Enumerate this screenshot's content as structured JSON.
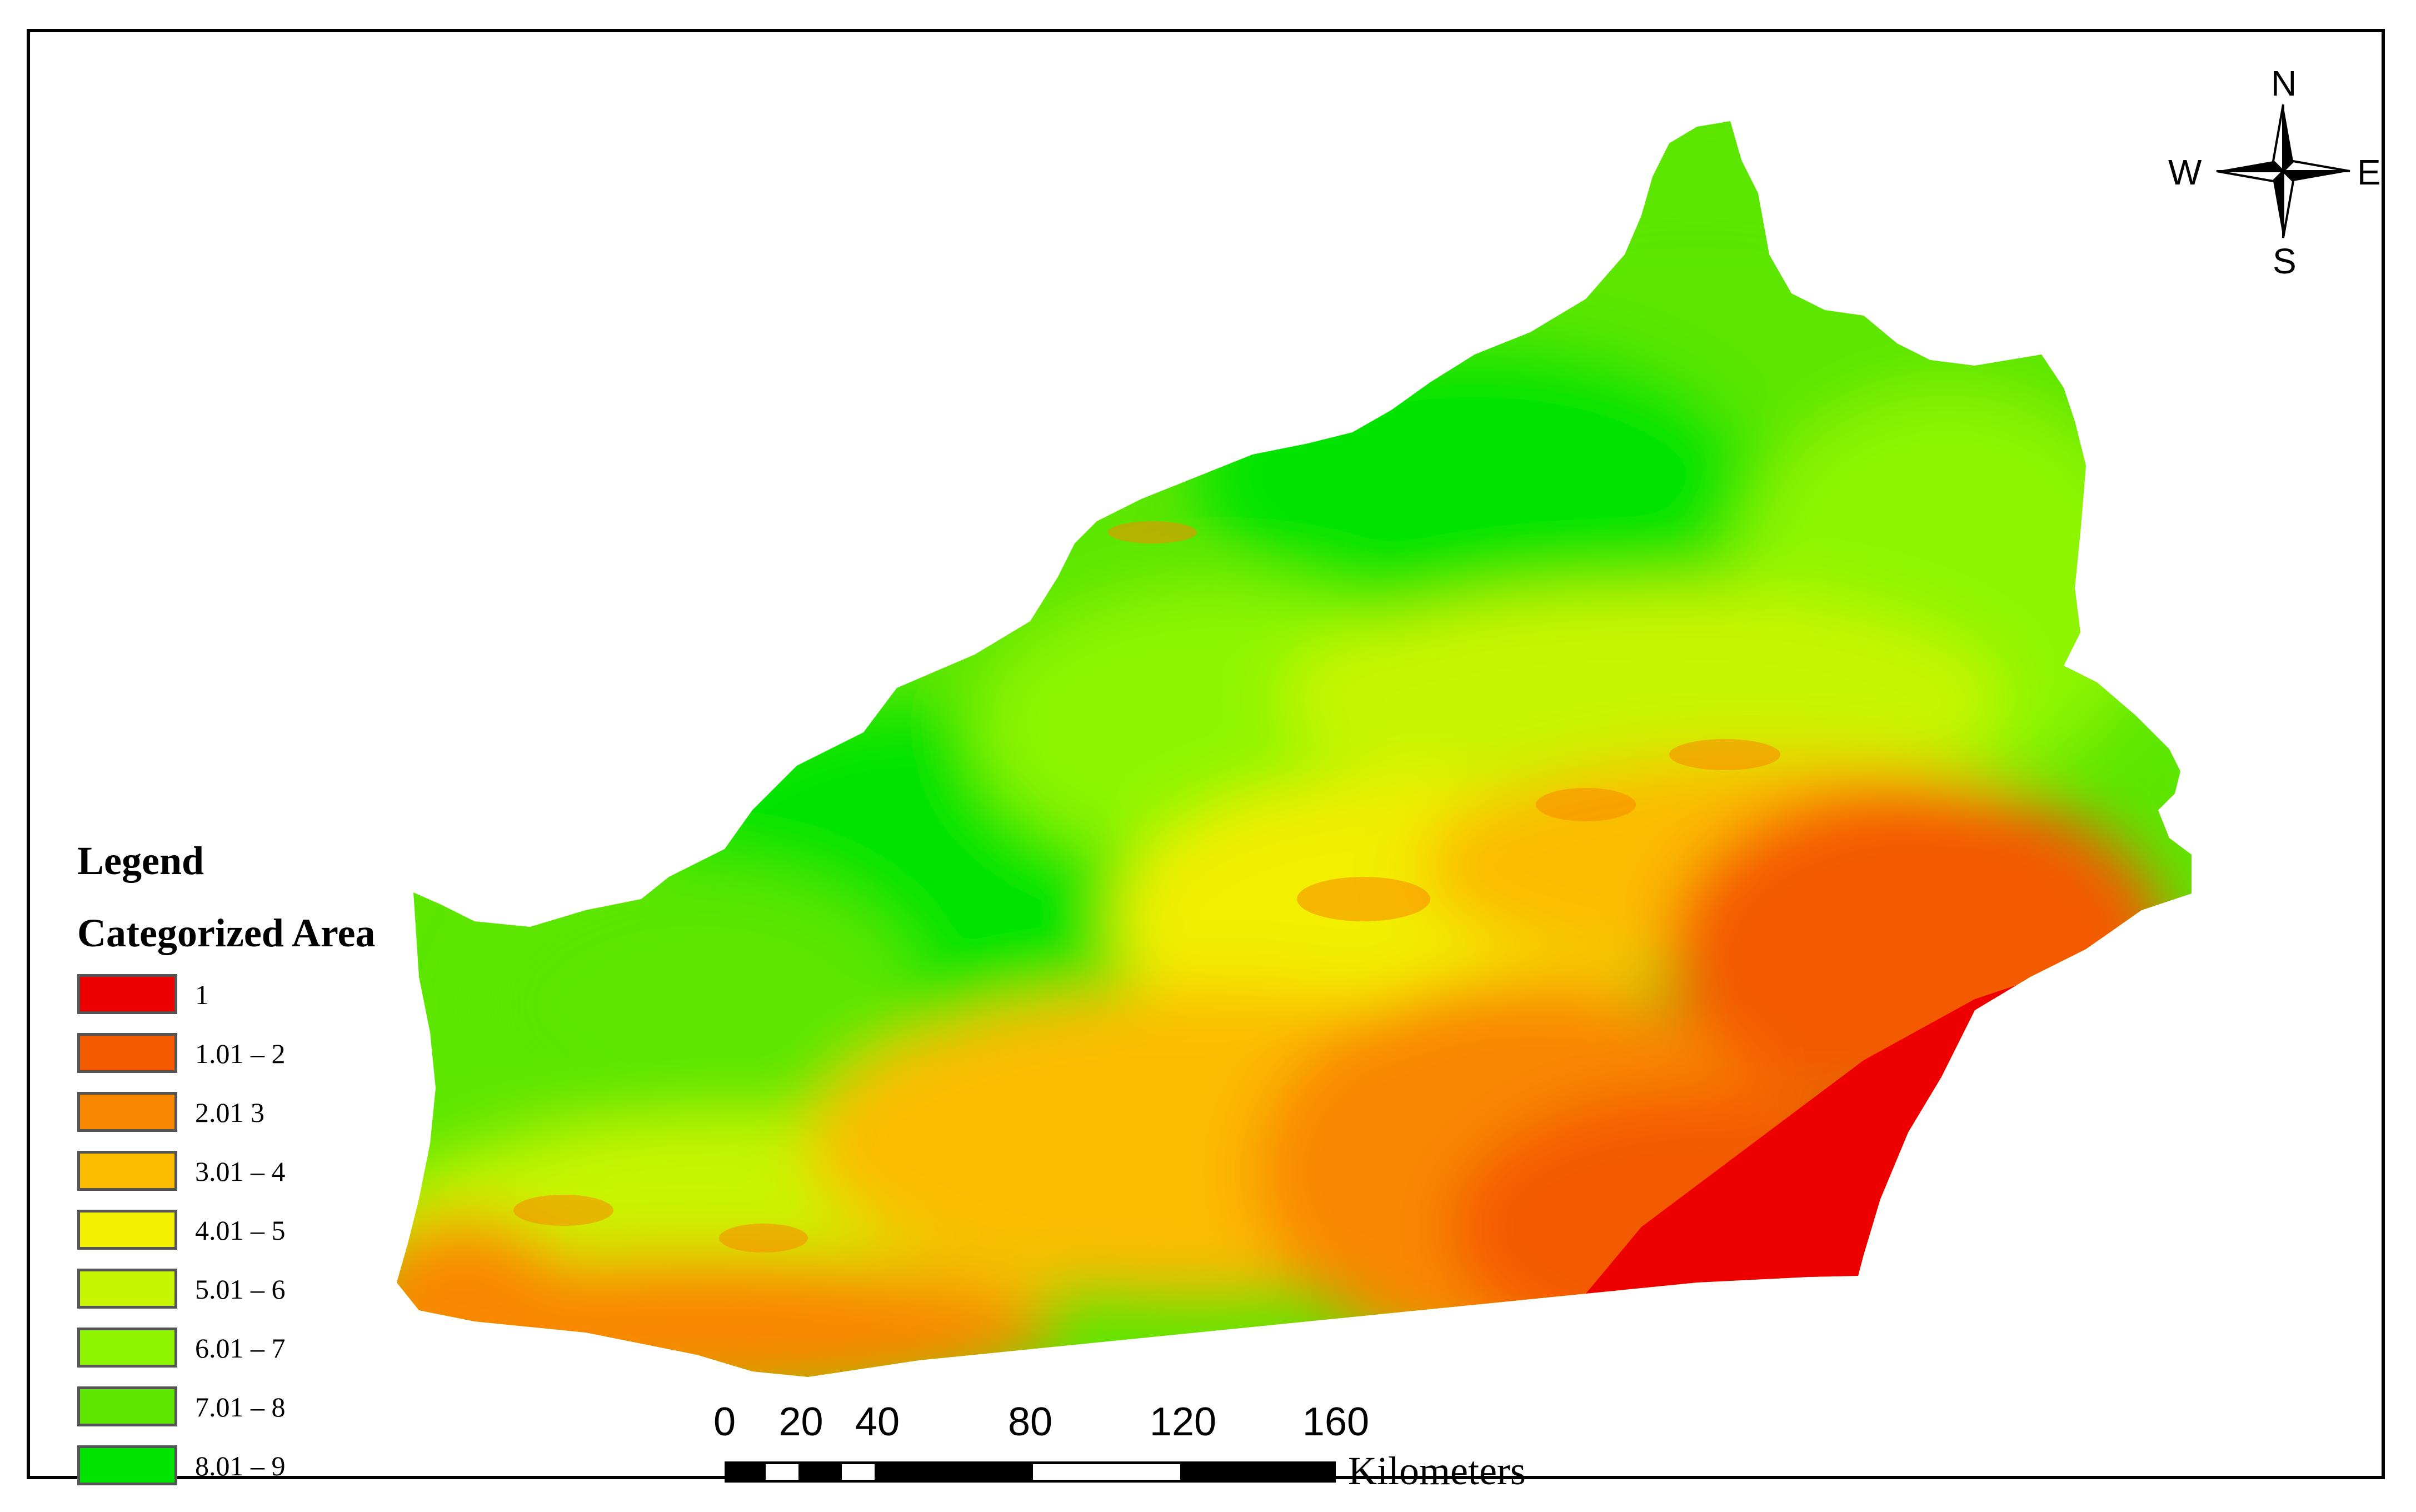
{
  "legend": {
    "title": "Legend",
    "subtitle": "Categorized Area",
    "items": [
      {
        "label": "1",
        "color": "#ee0000"
      },
      {
        "label": "1.01 – 2",
        "color": "#f45a00"
      },
      {
        "label": "2.01    3",
        "color": "#f98800"
      },
      {
        "label": "3.01 – 4",
        "color": "#fbbc00"
      },
      {
        "label": "4.01 – 5",
        "color": "#f2ef00"
      },
      {
        "label": "5.01 – 6",
        "color": "#c8f500"
      },
      {
        "label": "6.01 – 7",
        "color": "#8ef500"
      },
      {
        "label": "7.01 – 8",
        "color": "#5ce600"
      },
      {
        "label": "8.01 – 9",
        "color": "#00e400"
      }
    ]
  },
  "compass": {
    "n": "N",
    "s": "S",
    "e": "E",
    "w": "W"
  },
  "scale": {
    "ticks": [
      "0",
      "20",
      "40",
      "80",
      "120",
      "160"
    ],
    "unit": "Kilometers"
  }
}
